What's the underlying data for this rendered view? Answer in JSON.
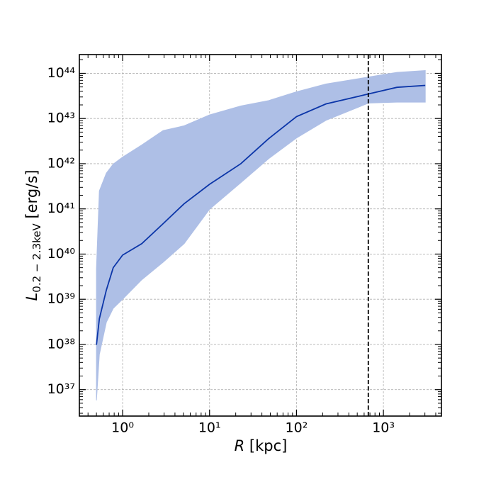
{
  "chart_data": {
    "type": "line",
    "x_label": {
      "symbol": "R",
      "unit": "[kpc]"
    },
    "y_label": {
      "symbol": "L",
      "subscript": "0.2 − 2.3keV",
      "unit": "[erg/s]"
    },
    "log_x": true,
    "log_y": true,
    "grid": true,
    "xlim": [
      0.318,
      4650
    ],
    "ylim": [
      2.6e+36,
      2.6e+44
    ],
    "xticks": [
      {
        "value": 1,
        "label": "10⁰"
      },
      {
        "value": 10,
        "label": "10¹"
      },
      {
        "value": 100,
        "label": "10²"
      },
      {
        "value": 1000,
        "label": "10³"
      }
    ],
    "yticks": [
      {
        "value": 1e+37,
        "label": "10³⁷"
      },
      {
        "value": 1e+38,
        "label": "10³⁸"
      },
      {
        "value": 1e+39,
        "label": "10³⁹"
      },
      {
        "value": 1e+40,
        "label": "10⁴⁰"
      },
      {
        "value": 1e+41,
        "label": "10⁴¹"
      },
      {
        "value": 1e+42,
        "label": "10⁴²"
      },
      {
        "value": 1e+43,
        "label": "10⁴³"
      },
      {
        "value": 1e+44,
        "label": "10⁴⁴"
      }
    ],
    "x": [
      0.5,
      0.54,
      0.65,
      0.78,
      1.0,
      1.66,
      2.92,
      5.1,
      10,
      22.9,
      48,
      100,
      218,
      675,
      1430,
      3030
    ],
    "series": [
      {
        "color": "#0b35a8",
        "values": [
          9.8e+37,
          3.7e+38,
          1.6e+39,
          5e+39,
          9.5e+39,
          1.7e+40,
          4.7e+40,
          1.3e+41,
          3.5e+41,
          1e+42,
          3.6e+42,
          1.1e+43,
          2.1e+43,
          3.5e+43,
          4.9e+43,
          5.4e+43
        ]
      }
    ],
    "band": {
      "color": "#aebfe6",
      "upper": [
        4.7e+39,
        2.5e+41,
        6.2e+41,
        9.8e+41,
        1.4e+42,
        2.6e+42,
        5.4e+42,
        6.9e+42,
        1.2e+43,
        1.9e+43,
        2.5e+43,
        3.9e+43,
        5.8e+43,
        8.3e+43,
        1.05e+44,
        1.15e+44
      ],
      "lower": [
        5.8e+36,
        6e+37,
        3.1e+38,
        6.3e+38,
        1e+39,
        2.7e+39,
        6.6e+39,
        1.7e+40,
        9.8e+40,
        3.8e+41,
        1.3e+42,
        3.7e+42,
        9.1e+42,
        2.2e+43,
        2.3e+43,
        2.3e+43
      ]
    },
    "vline": {
      "x": 670,
      "color": "#000000"
    }
  }
}
